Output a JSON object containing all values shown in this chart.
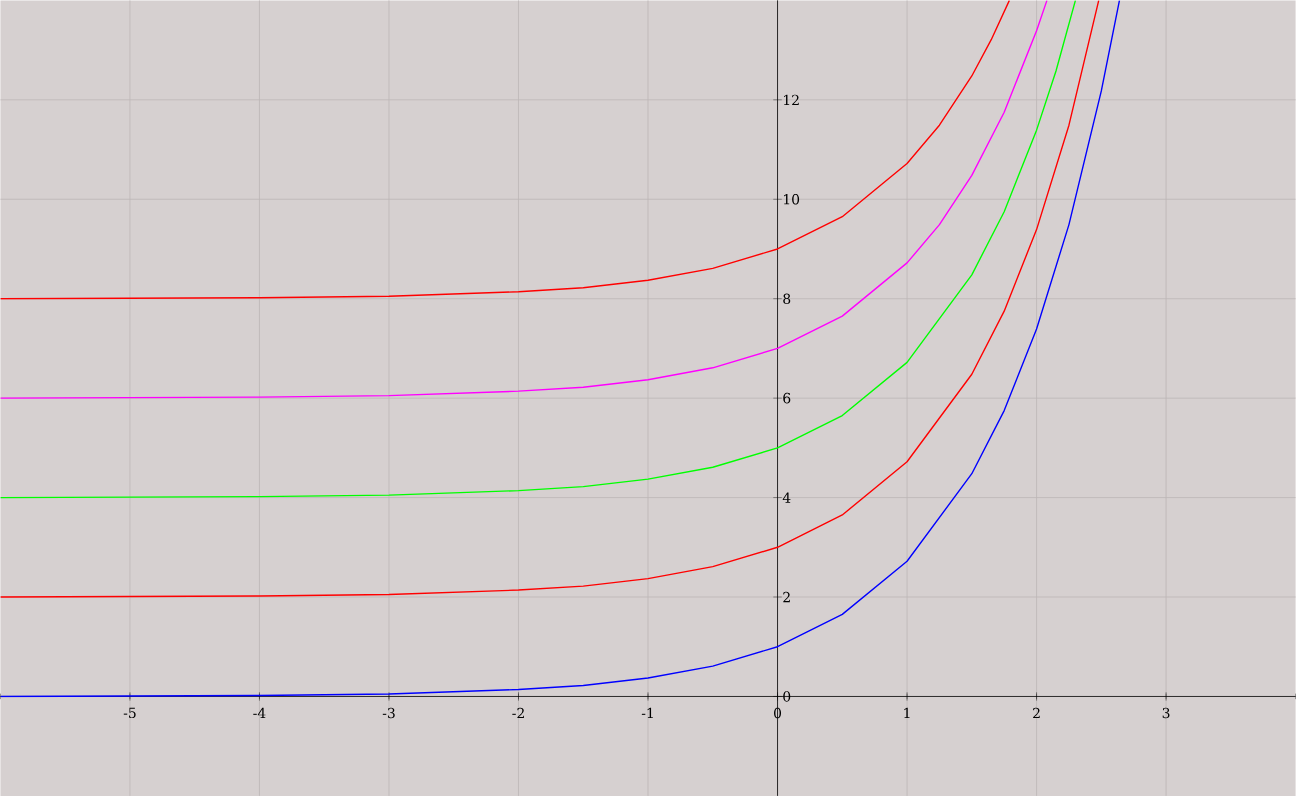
{
  "chart_data": {
    "type": "line",
    "xlim": [
      -6,
      4
    ],
    "ylim": [
      -2,
      14
    ],
    "xticks": [
      -5,
      -4,
      -3,
      -2,
      -1,
      0,
      1,
      2,
      3
    ],
    "yticks": [
      0,
      2,
      4,
      6,
      8,
      10,
      12
    ],
    "grid": true,
    "marker": "none",
    "line_style": "solid",
    "series": [
      {
        "color": "#0000ff",
        "x": [
          -6,
          -5,
          -4,
          -3,
          -2,
          -1.5,
          -1,
          -0.5,
          0,
          0.5,
          1,
          1.5,
          1.75,
          2,
          2.25,
          2.5,
          2.64
        ],
        "values": [
          0.0,
          0.01,
          0.02,
          0.05,
          0.14,
          0.22,
          0.37,
          0.61,
          1,
          1.65,
          2.72,
          4.48,
          5.75,
          7.39,
          9.49,
          12.18,
          14
        ]
      },
      {
        "color": "#ff0000",
        "x": [
          -6,
          -5,
          -4,
          -3,
          -2,
          -1.5,
          -1,
          -0.5,
          0,
          0.5,
          1,
          1.5,
          1.75,
          2,
          2.25,
          2.48
        ],
        "values": [
          2.0,
          2.01,
          2.02,
          2.05,
          2.14,
          2.22,
          2.37,
          2.61,
          3,
          3.65,
          4.72,
          6.48,
          7.75,
          9.39,
          11.49,
          14
        ]
      },
      {
        "color": "#00ff00",
        "x": [
          -6,
          -5,
          -4,
          -3,
          -2,
          -1.5,
          -1,
          -0.5,
          0,
          0.5,
          1,
          1.5,
          1.75,
          2,
          2.15,
          2.3
        ],
        "values": [
          4.0,
          4.01,
          4.02,
          4.05,
          4.14,
          4.22,
          4.37,
          4.61,
          5,
          5.65,
          6.72,
          8.48,
          9.75,
          11.39,
          12.58,
          14
        ]
      },
      {
        "color": "#ff00ff",
        "x": [
          -6,
          -5,
          -4,
          -3,
          -2,
          -1.5,
          -1,
          -0.5,
          0,
          0.5,
          1,
          1.25,
          1.5,
          1.75,
          2,
          2.08
        ],
        "values": [
          6.0,
          6.01,
          6.02,
          6.05,
          6.14,
          6.22,
          6.37,
          6.61,
          7,
          7.65,
          8.72,
          9.49,
          10.48,
          11.75,
          13.39,
          14
        ]
      },
      {
        "color": "#ff0000",
        "x": [
          -6,
          -5,
          -4,
          -3,
          -2,
          -1.5,
          -1,
          -0.5,
          0,
          0.5,
          1,
          1.25,
          1.5,
          1.65,
          1.79
        ],
        "values": [
          8.0,
          8.01,
          8.02,
          8.05,
          8.14,
          8.22,
          8.37,
          8.61,
          9,
          9.65,
          10.72,
          11.49,
          12.48,
          13.21,
          14
        ]
      }
    ]
  }
}
